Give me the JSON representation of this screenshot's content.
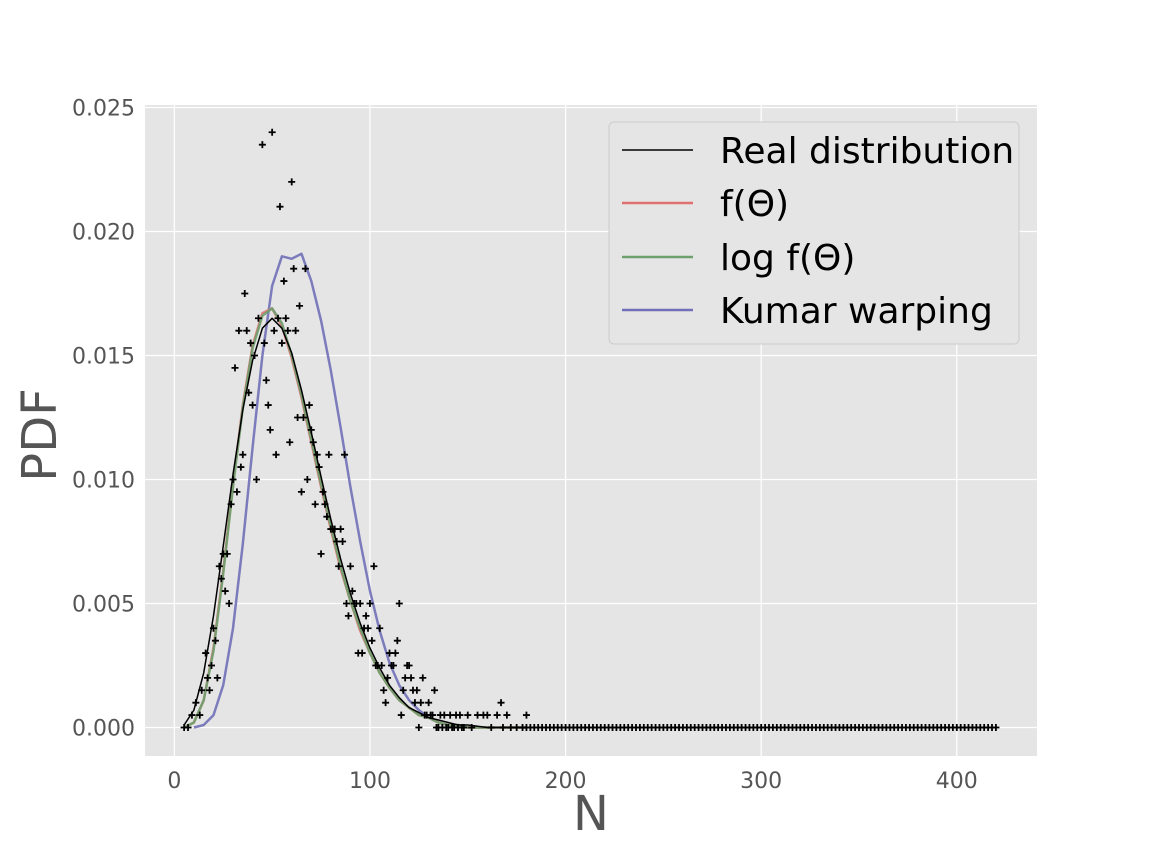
{
  "chart_data": {
    "type": "line",
    "title": "",
    "xlabel": "N",
    "ylabel": "PDF",
    "xlim": [
      -15,
      441
    ],
    "ylim": [
      -0.00115,
      0.0251
    ],
    "x_ticks": [
      0,
      100,
      200,
      300,
      400
    ],
    "y_ticks": [
      0.0,
      0.005,
      0.01,
      0.015,
      0.02,
      0.025
    ],
    "x_tick_labels": [
      "0",
      "100",
      "200",
      "300",
      "400"
    ],
    "y_tick_labels": [
      "0.000",
      "0.005",
      "0.010",
      "0.015",
      "0.020",
      "0.025"
    ],
    "grid": true,
    "legend_position": "top-right",
    "series": [
      {
        "name": "Real distribution",
        "color": "#000000",
        "kind": "line",
        "x": [
          5,
          10,
          15,
          20,
          25,
          30,
          35,
          40,
          45,
          50,
          55,
          60,
          65,
          70,
          75,
          80,
          85,
          90,
          95,
          100,
          105,
          110,
          115,
          120,
          125,
          130,
          135,
          140,
          145,
          150,
          160,
          170,
          180
        ],
        "y": [
          0.0001,
          0.0007,
          0.0022,
          0.0045,
          0.0073,
          0.0102,
          0.0128,
          0.0148,
          0.0161,
          0.0165,
          0.0161,
          0.0151,
          0.0136,
          0.0119,
          0.0101,
          0.0084,
          0.0068,
          0.0054,
          0.0042,
          0.0032,
          0.0024,
          0.0017,
          0.0012,
          0.0008,
          0.0006,
          0.0004,
          0.0003,
          0.0002,
          0.0001,
          0.0001,
          0.0,
          0.0,
          0.0
        ]
      },
      {
        "name": "f(Θ)",
        "color": "#e07070",
        "kind": "line",
        "x": [
          5,
          10,
          15,
          20,
          25,
          30,
          35,
          40,
          45,
          50,
          55,
          60,
          65,
          70,
          75,
          80,
          85,
          90,
          95,
          100,
          105,
          110,
          115,
          120,
          125,
          130,
          135,
          140,
          145,
          150,
          160,
          170,
          180
        ],
        "y": [
          0.0,
          0.0002,
          0.0011,
          0.0032,
          0.0063,
          0.0098,
          0.013,
          0.0154,
          0.0167,
          0.0169,
          0.0162,
          0.0149,
          0.0133,
          0.0115,
          0.0097,
          0.008,
          0.0064,
          0.0051,
          0.0039,
          0.003,
          0.0022,
          0.0016,
          0.0011,
          0.0008,
          0.0005,
          0.0004,
          0.0002,
          0.0001,
          0.0001,
          0.0,
          0.0,
          0.0,
          0.0
        ]
      },
      {
        "name": "log f(Θ)",
        "color": "#6ea06e",
        "kind": "line",
        "x": [
          5,
          10,
          15,
          20,
          25,
          30,
          35,
          40,
          45,
          50,
          55,
          60,
          65,
          70,
          75,
          80,
          85,
          90,
          95,
          100,
          105,
          110,
          115,
          120,
          125,
          130,
          135,
          140,
          145,
          150,
          160,
          170,
          180
        ],
        "y": [
          0.0,
          0.0002,
          0.0011,
          0.0031,
          0.0062,
          0.0097,
          0.0129,
          0.0153,
          0.0166,
          0.0169,
          0.0163,
          0.015,
          0.0134,
          0.0116,
          0.0098,
          0.0081,
          0.0065,
          0.0051,
          0.004,
          0.003,
          0.0022,
          0.0016,
          0.0011,
          0.0008,
          0.0005,
          0.0004,
          0.0002,
          0.0001,
          0.0001,
          0.0,
          0.0,
          0.0,
          0.0
        ]
      },
      {
        "name": "Kumar warping",
        "color": "#7070b8",
        "kind": "line",
        "x": [
          10,
          15,
          20,
          25,
          30,
          35,
          40,
          45,
          50,
          55,
          60,
          65,
          70,
          75,
          80,
          85,
          90,
          95,
          100,
          105,
          110,
          115,
          120,
          125,
          130,
          135,
          140,
          150,
          160,
          170,
          180
        ],
        "y": [
          0.0,
          0.0001,
          0.0005,
          0.0017,
          0.004,
          0.0074,
          0.0113,
          0.015,
          0.0178,
          0.019,
          0.0189,
          0.0191,
          0.018,
          0.0164,
          0.0144,
          0.0121,
          0.0097,
          0.0075,
          0.0055,
          0.0039,
          0.0026,
          0.0017,
          0.0011,
          0.0007,
          0.0004,
          0.0002,
          0.0001,
          0.0,
          0.0,
          0.0,
          0.0
        ]
      }
    ],
    "scatter": {
      "marker": "+",
      "color": "#000000",
      "points": [
        [
          5,
          0.0
        ],
        [
          7,
          0.0
        ],
        [
          9,
          0.0005
        ],
        [
          11,
          0.001
        ],
        [
          13,
          0.0005
        ],
        [
          14,
          0.0015
        ],
        [
          16,
          0.003
        ],
        [
          17,
          0.002
        ],
        [
          18,
          0.0015
        ],
        [
          19,
          0.0025
        ],
        [
          20,
          0.004
        ],
        [
          21,
          0.0035
        ],
        [
          22,
          0.002
        ],
        [
          23,
          0.0065
        ],
        [
          24,
          0.006
        ],
        [
          25,
          0.007
        ],
        [
          26,
          0.0055
        ],
        [
          27,
          0.007
        ],
        [
          28,
          0.005
        ],
        [
          29,
          0.009
        ],
        [
          30,
          0.01
        ],
        [
          31,
          0.0145
        ],
        [
          32,
          0.0095
        ],
        [
          33,
          0.016
        ],
        [
          34,
          0.0105
        ],
        [
          35,
          0.011
        ],
        [
          36,
          0.0175
        ],
        [
          37,
          0.016
        ],
        [
          38,
          0.0135
        ],
        [
          39,
          0.0155
        ],
        [
          40,
          0.013
        ],
        [
          41,
          0.015
        ],
        [
          42,
          0.01
        ],
        [
          43,
          0.0165
        ],
        [
          45,
          0.0235
        ],
        [
          46,
          0.0155
        ],
        [
          47,
          0.014
        ],
        [
          48,
          0.013
        ],
        [
          49,
          0.012
        ],
        [
          50,
          0.024
        ],
        [
          51,
          0.016
        ],
        [
          52,
          0.011
        ],
        [
          53,
          0.0165
        ],
        [
          54,
          0.021
        ],
        [
          55,
          0.0155
        ],
        [
          56,
          0.018
        ],
        [
          57,
          0.0165
        ],
        [
          58,
          0.016
        ],
        [
          59,
          0.0115
        ],
        [
          60,
          0.022
        ],
        [
          61,
          0.0185
        ],
        [
          62,
          0.016
        ],
        [
          63,
          0.0125
        ],
        [
          64,
          0.017
        ],
        [
          65,
          0.0095
        ],
        [
          66,
          0.0125
        ],
        [
          67,
          0.0185
        ],
        [
          68,
          0.01
        ],
        [
          69,
          0.013
        ],
        [
          70,
          0.012
        ],
        [
          71,
          0.0115
        ],
        [
          72,
          0.009
        ],
        [
          73,
          0.011
        ],
        [
          74,
          0.0105
        ],
        [
          75,
          0.007
        ],
        [
          76,
          0.0095
        ],
        [
          77,
          0.009
        ],
        [
          78,
          0.0085
        ],
        [
          79,
          0.011
        ],
        [
          80,
          0.008
        ],
        [
          81,
          0.008
        ],
        [
          82,
          0.008
        ],
        [
          83,
          0.0075
        ],
        [
          84,
          0.0065
        ],
        [
          85,
          0.008
        ],
        [
          86,
          0.0075
        ],
        [
          87,
          0.011
        ],
        [
          88,
          0.005
        ],
        [
          89,
          0.0045
        ],
        [
          90,
          0.0065
        ],
        [
          91,
          0.0055
        ],
        [
          92,
          0.005
        ],
        [
          93,
          0.005
        ],
        [
          94,
          0.003
        ],
        [
          95,
          0.005
        ],
        [
          96,
          0.003
        ],
        [
          97,
          0.004
        ],
        [
          98,
          0.0045
        ],
        [
          99,
          0.004
        ],
        [
          100,
          0.005
        ],
        [
          101,
          0.0035
        ],
        [
          102,
          0.0065
        ],
        [
          103,
          0.0025
        ],
        [
          104,
          0.0025
        ],
        [
          105,
          0.004
        ],
        [
          106,
          0.0025
        ],
        [
          107,
          0.0015
        ],
        [
          108,
          0.001
        ],
        [
          109,
          0.002
        ],
        [
          110,
          0.003
        ],
        [
          111,
          0.0025
        ],
        [
          112,
          0.0025
        ],
        [
          113,
          0.003
        ],
        [
          114,
          0.0035
        ],
        [
          115,
          0.005
        ],
        [
          116,
          0.0005
        ],
        [
          117,
          0.0015
        ],
        [
          118,
          0.002
        ],
        [
          119,
          0.0025
        ],
        [
          120,
          0.0025
        ],
        [
          121,
          0.002
        ],
        [
          122,
          0.0015
        ],
        [
          123,
          0.001
        ],
        [
          124,
          0.0015
        ],
        [
          125,
          0.0
        ],
        [
          126,
          0.001
        ],
        [
          127,
          0.002
        ],
        [
          128,
          0.0005
        ],
        [
          129,
          0.0005
        ],
        [
          130,
          0.001
        ],
        [
          131,
          0.0005
        ],
        [
          132,
          0.0005
        ],
        [
          133,
          0.0015
        ],
        [
          134,
          0.0
        ],
        [
          135,
          0.0
        ],
        [
          136,
          0.0005
        ],
        [
          137,
          0.0
        ],
        [
          138,
          0.0005
        ],
        [
          139,
          0.0
        ],
        [
          140,
          0.0
        ],
        [
          141,
          0.0005
        ],
        [
          142,
          0.0
        ],
        [
          143,
          0.0
        ],
        [
          144,
          0.0005
        ],
        [
          145,
          0.0
        ],
        [
          146,
          0.0005
        ],
        [
          147,
          0.0
        ],
        [
          148,
          0.0
        ],
        [
          150,
          0.0005
        ],
        [
          152,
          0.0
        ],
        [
          155,
          0.0005
        ],
        [
          158,
          0.0005
        ],
        [
          160,
          0.0005
        ],
        [
          162,
          0.0
        ],
        [
          165,
          0.0005
        ],
        [
          167,
          0.001
        ],
        [
          168,
          0.0
        ],
        [
          170,
          0.0005
        ],
        [
          172,
          0.0
        ],
        [
          175,
          0.0
        ],
        [
          178,
          0.0
        ],
        [
          180,
          0.0005
        ]
      ],
      "zero_tail_range": [
        180,
        420
      ]
    }
  }
}
